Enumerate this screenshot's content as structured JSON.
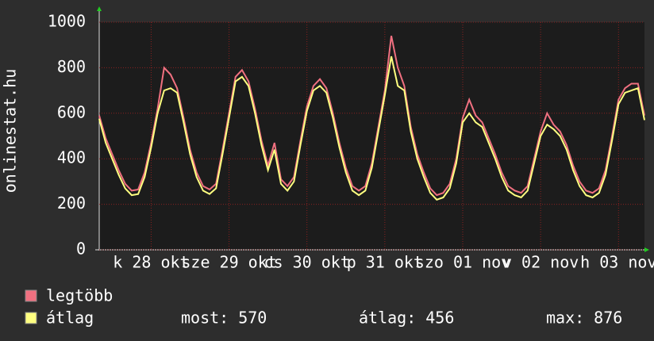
{
  "chart_data": {
    "type": "line",
    "ylabel": "onlinestat.hu",
    "x": [
      0,
      2,
      4,
      6,
      8,
      10,
      12,
      14,
      16,
      18,
      20,
      22,
      24,
      26,
      28,
      30,
      32,
      34,
      36,
      38,
      40,
      42,
      44,
      46,
      48,
      50,
      52,
      54,
      56,
      58,
      60,
      62,
      64,
      66,
      68,
      70,
      72,
      74,
      76,
      78,
      80,
      82,
      84,
      86,
      88,
      90,
      92,
      94,
      96,
      98,
      100,
      102,
      104,
      106,
      108,
      110,
      112,
      114,
      116,
      118,
      120,
      122,
      124,
      126,
      128,
      130,
      132,
      134,
      136,
      138,
      140,
      142,
      144,
      146,
      148,
      150,
      152,
      154,
      156,
      158,
      160,
      162,
      164,
      166,
      168
    ],
    "series": [
      {
        "name": "legtöbb",
        "color": "#f07080",
        "values": [
          590,
          490,
          420,
          350,
          290,
          260,
          265,
          340,
          470,
          620,
          800,
          770,
          710,
          580,
          440,
          340,
          280,
          265,
          290,
          440,
          600,
          760,
          790,
          740,
          620,
          480,
          370,
          470,
          310,
          280,
          320,
          480,
          630,
          720,
          750,
          710,
          600,
          470,
          360,
          280,
          260,
          280,
          380,
          540,
          700,
          940,
          800,
          720,
          540,
          420,
          340,
          270,
          240,
          250,
          290,
          400,
          580,
          660,
          590,
          560,
          490,
          420,
          340,
          280,
          260,
          250,
          280,
          400,
          520,
          600,
          550,
          520,
          460,
          370,
          300,
          260,
          250,
          270,
          350,
          500,
          660,
          710,
          730,
          730,
          590
        ]
      },
      {
        "name": "átlag",
        "color": "#ffff80",
        "values": [
          575,
          470,
          400,
          330,
          270,
          240,
          245,
          320,
          450,
          600,
          700,
          710,
          690,
          560,
          420,
          320,
          260,
          245,
          270,
          420,
          580,
          740,
          760,
          720,
          600,
          460,
          350,
          440,
          290,
          260,
          300,
          460,
          610,
          700,
          720,
          690,
          580,
          450,
          340,
          260,
          240,
          260,
          360,
          520,
          680,
          850,
          720,
          700,
          520,
          400,
          320,
          250,
          220,
          230,
          270,
          380,
          560,
          600,
          560,
          540,
          470,
          400,
          320,
          260,
          240,
          230,
          260,
          380,
          500,
          550,
          530,
          500,
          440,
          350,
          280,
          240,
          230,
          250,
          330,
          480,
          640,
          690,
          700,
          710,
          570
        ]
      }
    ],
    "xlim": [
      0,
      168
    ],
    "xticks": [
      {
        "value": 16,
        "label": "k 28 okt"
      },
      {
        "value": 40,
        "label": "sze 29 okt"
      },
      {
        "value": 64,
        "label": "cs 30 okt"
      },
      {
        "value": 88,
        "label": "p 31 okt"
      },
      {
        "value": 112,
        "label": "szo 01 nov"
      },
      {
        "value": 136,
        "label": "v 02 nov"
      },
      {
        "value": 160,
        "label": "h 03 nov"
      }
    ],
    "ylim": [
      0,
      1000
    ],
    "yticks": [
      0,
      200,
      400,
      600,
      800,
      1000
    ],
    "grid": true,
    "stats": [
      {
        "label": "most:",
        "value": 570
      },
      {
        "label": "átlag:",
        "value": 456
      },
      {
        "label": "max:",
        "value": 876
      }
    ]
  }
}
